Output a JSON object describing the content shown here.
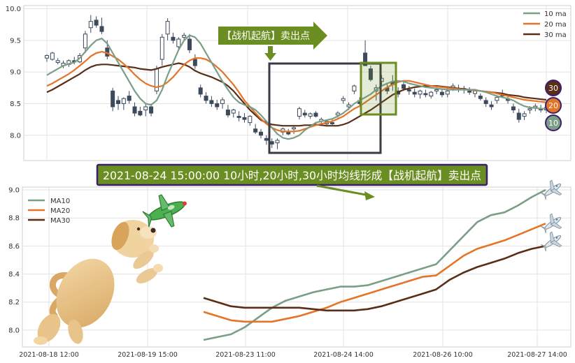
{
  "chart_data": [
    {
      "type": "candlestick",
      "ylim": [
        7.6,
        10.05
      ],
      "yticks": [
        "8.0",
        "8.5",
        "9.0",
        "9.5",
        "10.0"
      ],
      "legend": [
        "10 ma",
        "20 ma",
        "30 ma"
      ],
      "legend_position": "top-right",
      "grid": true,
      "annotation": "【战机起航】卖出点",
      "ma_badges": [
        "30",
        "20",
        "10"
      ],
      "candles": [
        [
          9.22,
          9.28,
          9.16,
          9.26
        ],
        [
          9.2,
          9.32,
          9.18,
          9.3
        ],
        [
          9.15,
          9.22,
          9.12,
          9.18
        ],
        [
          9.1,
          9.18,
          9.06,
          9.14
        ],
        [
          9.12,
          9.2,
          9.08,
          9.18
        ],
        [
          9.18,
          9.24,
          9.12,
          9.16
        ],
        [
          9.16,
          9.3,
          9.14,
          9.26
        ],
        [
          9.38,
          9.65,
          9.3,
          9.6
        ],
        [
          9.7,
          9.9,
          9.62,
          9.8
        ],
        [
          9.82,
          9.88,
          9.7,
          9.74
        ],
        [
          9.72,
          9.86,
          9.6,
          9.64
        ],
        [
          9.38,
          9.5,
          9.2,
          9.25
        ],
        [
          8.7,
          8.75,
          8.38,
          8.45
        ],
        [
          8.55,
          8.62,
          8.4,
          8.5
        ],
        [
          8.5,
          8.6,
          8.4,
          8.58
        ],
        [
          8.62,
          8.7,
          8.5,
          8.55
        ],
        [
          8.45,
          8.52,
          8.3,
          8.35
        ],
        [
          8.38,
          8.45,
          8.3,
          8.32
        ],
        [
          8.4,
          8.5,
          8.3,
          8.45
        ],
        [
          8.45,
          8.5,
          8.3,
          8.35
        ],
        [
          8.7,
          9.1,
          8.65,
          9.05
        ],
        [
          9.2,
          9.6,
          9.1,
          9.55
        ],
        [
          9.6,
          9.85,
          9.5,
          9.8
        ],
        [
          9.55,
          9.62,
          9.45,
          9.5
        ],
        [
          9.4,
          9.55,
          9.35,
          9.52
        ],
        [
          9.55,
          9.62,
          9.5,
          9.58
        ],
        [
          9.52,
          9.6,
          9.3,
          9.35
        ],
        [
          9.2,
          9.28,
          9.05,
          9.1
        ],
        [
          8.75,
          8.8,
          8.6,
          8.65
        ],
        [
          8.62,
          8.68,
          8.5,
          8.55
        ],
        [
          8.55,
          8.62,
          8.45,
          8.5
        ],
        [
          8.5,
          8.56,
          8.4,
          8.45
        ],
        [
          8.5,
          8.6,
          8.42,
          8.56
        ],
        [
          8.4,
          8.48,
          8.28,
          8.32
        ],
        [
          8.35,
          8.42,
          8.28,
          8.4
        ],
        [
          8.3,
          8.38,
          8.22,
          8.28
        ],
        [
          8.28,
          8.35,
          8.2,
          8.25
        ],
        [
          8.2,
          8.32,
          8.15,
          8.3
        ],
        [
          8.1,
          8.18,
          8.02,
          8.05
        ],
        [
          8.05,
          8.1,
          7.95,
          8.0
        ],
        [
          7.95,
          8.0,
          7.85,
          7.92
        ],
        [
          7.9,
          7.95,
          7.8,
          7.86
        ],
        [
          7.88,
          7.95,
          7.78,
          7.92
        ],
        [
          8.05,
          8.12,
          8.0,
          8.1
        ],
        [
          8.05,
          8.1,
          8.0,
          8.02
        ],
        [
          8.1,
          8.15,
          8.02,
          8.12
        ],
        [
          8.3,
          8.45,
          8.25,
          8.42
        ],
        [
          8.35,
          8.4,
          8.28,
          8.32
        ],
        [
          8.3,
          8.36,
          8.26,
          8.34
        ],
        [
          8.35,
          8.38,
          8.28,
          8.3
        ],
        [
          8.22,
          8.28,
          8.15,
          8.25
        ],
        [
          8.18,
          8.25,
          8.14,
          8.22
        ],
        [
          8.2,
          8.26,
          8.15,
          8.18
        ],
        [
          8.32,
          8.38,
          8.28,
          8.35
        ],
        [
          8.55,
          8.62,
          8.5,
          8.58
        ],
        [
          8.45,
          8.52,
          8.4,
          8.48
        ],
        [
          8.7,
          8.8,
          8.65,
          8.78
        ],
        [
          8.55,
          8.6,
          8.45,
          8.5
        ],
        [
          9.3,
          9.5,
          9.1,
          9.1
        ],
        [
          9.05,
          9.1,
          8.85,
          8.88
        ],
        [
          8.7,
          8.8,
          8.55,
          8.75
        ],
        [
          8.85,
          8.95,
          8.78,
          8.9
        ],
        [
          8.75,
          8.82,
          8.65,
          8.7
        ],
        [
          8.85,
          8.95,
          8.7,
          8.8
        ],
        [
          8.7,
          8.76,
          8.6,
          8.65
        ],
        [
          8.8,
          8.84,
          8.7,
          8.74
        ],
        [
          8.72,
          8.78,
          8.64,
          8.7
        ],
        [
          8.68,
          8.74,
          8.6,
          8.65
        ],
        [
          8.65,
          8.72,
          8.58,
          8.7
        ],
        [
          8.66,
          8.72,
          8.6,
          8.64
        ],
        [
          8.62,
          8.7,
          8.58,
          8.68
        ],
        [
          8.7,
          8.78,
          8.65,
          8.72
        ],
        [
          8.68,
          8.74,
          8.6,
          8.64
        ],
        [
          8.65,
          8.75,
          8.6,
          8.7
        ],
        [
          8.75,
          8.82,
          8.7,
          8.78
        ],
        [
          8.74,
          8.8,
          8.68,
          8.72
        ],
        [
          8.72,
          8.78,
          8.66,
          8.74
        ],
        [
          8.7,
          8.76,
          8.64,
          8.68
        ],
        [
          8.66,
          8.72,
          8.6,
          8.7
        ],
        [
          8.62,
          8.66,
          8.55,
          8.58
        ],
        [
          8.55,
          8.6,
          8.45,
          8.5
        ],
        [
          8.48,
          8.54,
          8.4,
          8.45
        ],
        [
          8.55,
          8.62,
          8.5,
          8.6
        ],
        [
          8.66,
          8.72,
          8.6,
          8.62
        ],
        [
          8.58,
          8.64,
          8.5,
          8.55
        ],
        [
          8.45,
          8.5,
          8.35,
          8.4
        ],
        [
          8.35,
          8.42,
          8.2,
          8.25
        ],
        [
          8.3,
          8.38,
          8.24,
          8.34
        ],
        [
          8.4,
          8.46,
          8.34,
          8.42
        ],
        [
          8.44,
          8.5,
          8.38,
          8.46
        ],
        [
          8.42,
          8.48,
          8.36,
          8.4
        ],
        [
          8.4,
          8.46,
          8.35,
          8.44
        ]
      ],
      "ma10": [
        8.95,
        9.0,
        9.05,
        9.1,
        9.13,
        9.15,
        9.22,
        9.32,
        9.42,
        9.5,
        9.53,
        9.45,
        9.3,
        9.15,
        9.0,
        8.85,
        8.7,
        8.58,
        8.5,
        8.48,
        8.55,
        8.72,
        8.95,
        9.15,
        9.35,
        9.5,
        9.58,
        9.55,
        9.45,
        9.3,
        9.15,
        9.0,
        8.85,
        8.72,
        8.6,
        8.52,
        8.48,
        8.45,
        8.4,
        8.32,
        8.22,
        8.12,
        8.02,
        7.96,
        7.94,
        7.96,
        8.0,
        8.08,
        8.14,
        8.2,
        8.22,
        8.24,
        8.26,
        8.3,
        8.35,
        8.42,
        8.5,
        8.55,
        8.6,
        8.65,
        8.72,
        8.78,
        8.82,
        8.85,
        8.86,
        8.85,
        8.82,
        8.8,
        8.78,
        8.76,
        8.75,
        8.74,
        8.73,
        8.72,
        8.72,
        8.72,
        8.72,
        8.72,
        8.72,
        8.7,
        8.68,
        8.65,
        8.62,
        8.6,
        8.58,
        8.55,
        8.5,
        8.46,
        8.44,
        8.43,
        8.42,
        8.42
      ],
      "ma20": [
        8.78,
        8.82,
        8.87,
        8.92,
        8.97,
        9.03,
        9.1,
        9.17,
        9.25,
        9.3,
        9.32,
        9.3,
        9.25,
        9.2,
        9.13,
        9.05,
        8.96,
        8.88,
        8.82,
        8.78,
        8.76,
        8.78,
        8.84,
        8.92,
        9.02,
        9.12,
        9.18,
        9.22,
        9.22,
        9.2,
        9.15,
        9.08,
        9.0,
        8.9,
        8.8,
        8.68,
        8.55,
        8.45,
        8.35,
        8.26,
        8.18,
        8.12,
        8.08,
        8.06,
        8.06,
        8.06,
        8.07,
        8.1,
        8.13,
        8.16,
        8.18,
        8.2,
        8.22,
        8.26,
        8.3,
        8.36,
        8.42,
        8.46,
        8.52,
        8.58,
        8.64,
        8.7,
        8.76,
        8.8,
        8.84,
        8.86,
        8.86,
        8.84,
        8.82,
        8.8,
        8.78,
        8.77,
        8.76,
        8.75,
        8.74,
        8.73,
        8.72,
        8.72,
        8.71,
        8.7,
        8.69,
        8.68,
        8.66,
        8.64,
        8.62,
        8.6,
        8.58,
        8.56,
        8.55,
        8.54,
        8.53,
        8.52
      ],
      "ma30": [
        8.68,
        8.72,
        8.77,
        8.82,
        8.87,
        8.92,
        8.97,
        9.03,
        9.08,
        9.11,
        9.12,
        9.12,
        9.11,
        9.1,
        9.09,
        9.08,
        9.07,
        9.05,
        9.04,
        9.03,
        9.05,
        9.08,
        9.1,
        9.12,
        9.14,
        9.12,
        9.08,
        9.02,
        8.98,
        8.95,
        8.92,
        8.88,
        8.84,
        8.78,
        8.7,
        8.6,
        8.5,
        8.4,
        8.32,
        8.24,
        8.2,
        8.17,
        8.16,
        8.15,
        8.15,
        8.15,
        8.15,
        8.16,
        8.16,
        8.17,
        8.16,
        8.15,
        8.15,
        8.15,
        8.17,
        8.2,
        8.25,
        8.3,
        8.35,
        8.4,
        8.46,
        8.52,
        8.58,
        8.64,
        8.68,
        8.72,
        8.74,
        8.76,
        8.77,
        8.78,
        8.78,
        8.78,
        8.77,
        8.76,
        8.75,
        8.74,
        8.73,
        8.72,
        8.71,
        8.7,
        8.69,
        8.68,
        8.67,
        8.66,
        8.64,
        8.63,
        8.62,
        8.6,
        8.59,
        8.58,
        8.57,
        8.56
      ]
    },
    {
      "type": "line",
      "ylim": [
        7.88,
        9.02
      ],
      "yticks": [
        "8.0",
        "8.2",
        "8.4",
        "8.6",
        "8.8",
        "9.0"
      ],
      "xticks": [
        "2021-08-18 12:00",
        "2021-08-19 15:00",
        "2021-08-23 11:00",
        "2021-08-24 14:00",
        "2021-08-26 10:00",
        "2021-08-27 14:00"
      ],
      "legend_position": "top-left",
      "grid": true,
      "series": [
        {
          "name": "MA10",
          "color": "#7a9e86",
          "values": [
            7.93,
            7.95,
            7.97,
            8.02,
            8.09,
            8.16,
            8.21,
            8.24,
            8.27,
            8.29,
            8.31,
            8.31,
            8.32,
            8.35,
            8.38,
            8.41,
            8.44,
            8.47,
            8.57,
            8.67,
            8.77,
            8.82,
            8.84,
            8.89,
            8.95,
            9.0
          ]
        },
        {
          "name": "MA20",
          "color": "#e57428",
          "values": [
            8.13,
            8.1,
            8.07,
            8.06,
            8.06,
            8.06,
            8.08,
            8.1,
            8.13,
            8.16,
            8.2,
            8.23,
            8.26,
            8.29,
            8.32,
            8.35,
            8.38,
            8.39,
            8.46,
            8.53,
            8.58,
            8.61,
            8.64,
            8.68,
            8.72,
            8.76
          ]
        },
        {
          "name": "MA30",
          "color": "#5a2d17",
          "values": [
            8.23,
            8.2,
            8.17,
            8.16,
            8.16,
            8.16,
            8.16,
            8.16,
            8.15,
            8.14,
            8.14,
            8.14,
            8.15,
            8.17,
            8.2,
            8.23,
            8.26,
            8.29,
            8.36,
            8.41,
            8.45,
            8.48,
            8.51,
            8.55,
            8.58,
            8.6
          ]
        }
      ],
      "banner": "2021-08-24 15:00:00 10小时,20小时,30小时均线形成【战机起航】卖出点"
    }
  ],
  "colors": {
    "ma10": "#7a9e86",
    "ma20": "#e57428",
    "ma30": "#5a2d17",
    "candle": "#3d4a5c",
    "annotation_green": "#6b8e23",
    "banner_bg": "#6b8e23",
    "banner_border": "#3b1f6b",
    "box": "#3a3a45"
  },
  "icons": [
    "dog-illustration",
    "green-airplane-icon",
    "airplane-icon"
  ]
}
